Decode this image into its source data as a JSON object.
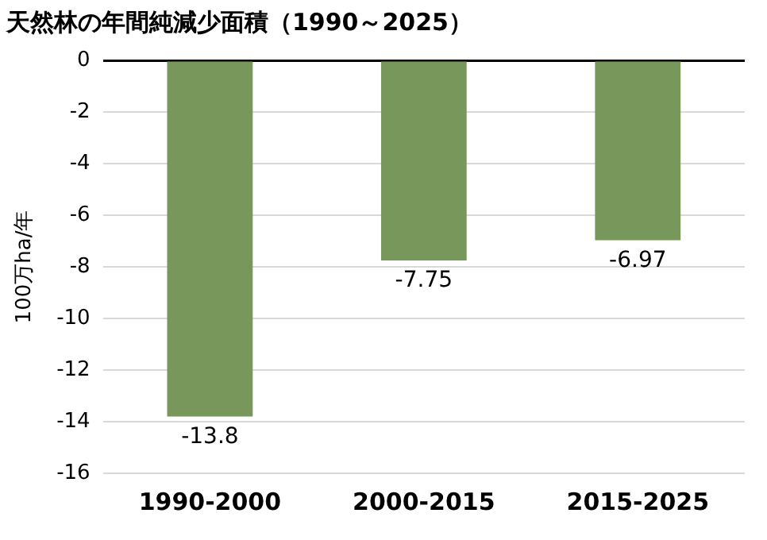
{
  "chart_data": {
    "type": "bar",
    "title": "天然林の年間純減少面積（1990～2025）",
    "ylabel": "100万ha/年",
    "categories": [
      "1990-2000",
      "2000-2015",
      "2015-2025"
    ],
    "values": [
      -13.8,
      -7.75,
      -6.97
    ],
    "color": "#77985a",
    "ylim": [
      -16,
      0
    ],
    "yticks": [
      -16,
      -14,
      -12,
      -10,
      -8,
      -6,
      -4,
      -2,
      0
    ],
    "grid": "y",
    "data_labels": true,
    "legend": false
  }
}
